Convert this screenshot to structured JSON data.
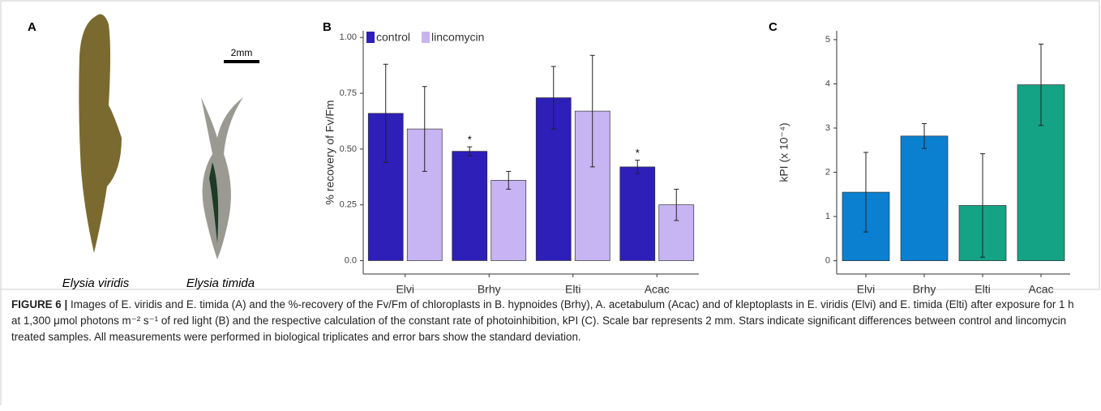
{
  "panel_labels": [
    "A",
    "B",
    "C"
  ],
  "panel_a": {
    "species": [
      "Elysia viridis",
      "Elysia timida"
    ],
    "scale_bar": "2mm"
  },
  "chart_data": [
    {
      "type": "bar",
      "y_label": "% recovery of Fv/Fm",
      "categories": [
        "Elvi",
        "Brhy",
        "Elti",
        "Acac"
      ],
      "series": [
        {
          "name": "control",
          "color": "#2d1fb8",
          "values": [
            0.66,
            0.49,
            0.73,
            0.42
          ],
          "errors": [
            0.22,
            0.02,
            0.14,
            0.03
          ]
        },
        {
          "name": "lincomycin",
          "color": "#c7b4f2",
          "values": [
            0.59,
            0.36,
            0.67,
            0.25
          ],
          "errors": [
            0.19,
            0.04,
            0.25,
            0.07
          ]
        }
      ],
      "significance_marker": "*",
      "significant_categories": [
        "Brhy",
        "Acac"
      ],
      "ylim": [
        -0.06,
        1.03
      ],
      "yticks": [
        {
          "value": 0,
          "label": "0.0"
        },
        0.25,
        {
          "value": 0.5,
          "label": "0.50"
        },
        0.75,
        {
          "value": 1,
          "label": "1.00"
        }
      ]
    },
    {
      "type": "bar",
      "y_label": "kPI (x 10⁻⁴)",
      "categories": [
        "Elvi",
        "Brhy",
        "Elti",
        "Acac"
      ],
      "values": [
        1.55,
        2.82,
        1.25,
        3.98
      ],
      "errors": [
        0.9,
        0.28,
        1.17,
        0.92
      ],
      "colors": [
        "#0b80d0",
        "#0b80d0",
        "#14a384",
        "#14a384"
      ],
      "ylim": [
        -0.3,
        5.2
      ],
      "yticks": [
        0,
        1,
        2,
        3,
        4,
        5
      ]
    }
  ],
  "caption": {
    "label": "FIGURE 6 |",
    "text": "Images of E. viridis and E. timida (A) and the %-recovery of the Fv/Fm of chloroplasts in B. hypnoides (Brhy), A. acetabulum (Acac) and of kleptoplasts in E. viridis (Elvi) and E. timida (Elti) after exposure for 1 h at 1,300 μmol photons m⁻² s⁻¹ of red light (B) and the respective calculation of the constant rate of photoinhibition, kPI (C). Scale bar represents 2 mm. Stars indicate significant differences between control and lincomycin treated samples. All measurements were performed in biological triplicates and error bars show the standard deviation."
  }
}
